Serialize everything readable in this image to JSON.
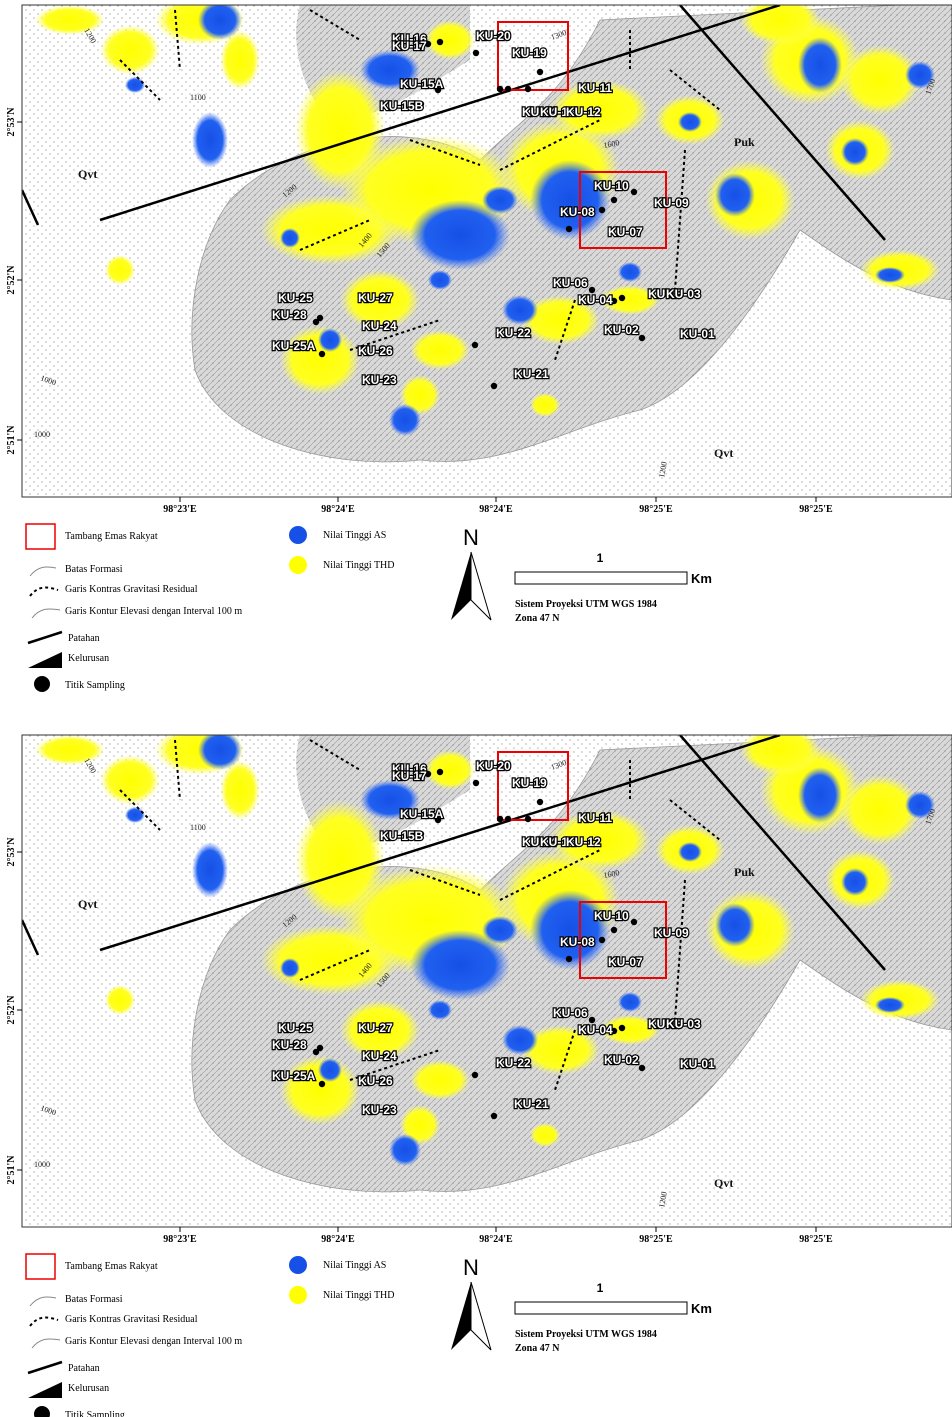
{
  "panels": [
    {
      "sample_labels": [
        "KU-16",
        "KU-17",
        "KU-20",
        "KU-19",
        "KU-15A",
        "KU-15B",
        "KU-11",
        "KU-14",
        "KU-13",
        "KU-12",
        "KU-10",
        "KU-08",
        "KU-09",
        "KU-07",
        "KU-06",
        "KU-04",
        "KU-05",
        "KU-03",
        "KU-25",
        "KU-27",
        "KU-28",
        "KU-24",
        "KU-25A",
        "KU-26",
        "KU-23",
        "KU-22",
        "KU-02",
        "KU-01",
        "KU-21"
      ],
      "formation_labels": [
        "Qvt",
        "Puk",
        "Qvt"
      ],
      "contour_labels": [
        "1200",
        "1100",
        "1300",
        "1600",
        "1200",
        "1400",
        "1500",
        "1000",
        "1000",
        "1200",
        "1700"
      ],
      "lon_ticks": [
        "98°23'E",
        "98°24'E",
        "98°24'E",
        "98°25'E",
        "98°25'E"
      ],
      "lat_ticks": [
        "2°53'N",
        "2°52'N",
        "2°51'N"
      ],
      "legend": [
        "Tambang Emas Rakyat",
        "Batas Formasi",
        "Garis Kontras Gravitasi Residual",
        "Garis Kontur Elevasi dengan Interval 100  m",
        "Patahan",
        "Kelurusan",
        "Titik Sampling",
        "Nilai Tinggi AS",
        "Nilai Tinggi THD"
      ],
      "north": "N",
      "scale": {
        "value": 1,
        "unit": "Km"
      },
      "projection": [
        "Sistem Proyeksi UTM WGS 1984",
        "Zona 47 N"
      ]
    },
    {
      "sample_labels": [
        "KU-16",
        "KU-17",
        "KU-20",
        "KU-19",
        "KU-15A",
        "KU-15B",
        "KU-11",
        "KU-14",
        "KU-13",
        "KU-12",
        "KU-10",
        "KU-08",
        "KU-09",
        "KU-07",
        "KU-06",
        "KU-04",
        "KU-05",
        "KU-03",
        "KU-25",
        "KU-27",
        "KU-28",
        "KU-24",
        "KU-25A",
        "KU-26",
        "KU-23",
        "KU-22",
        "KU-02",
        "KU-01",
        "KU-21"
      ],
      "formation_labels": [
        "Qvt",
        "Puk",
        "Qvt"
      ],
      "contour_labels": [
        "1200",
        "1100",
        "1300",
        "1600",
        "1200",
        "1400",
        "1500",
        "1000",
        "1000",
        "1200",
        "1700"
      ],
      "lon_ticks": [
        "98°23'E",
        "98°24'E",
        "98°24'E",
        "98°25'E",
        "98°25'E"
      ],
      "lat_ticks": [
        "2°53'N",
        "2°52'N",
        "2°51'N"
      ],
      "legend": [
        "Tambang Emas Rakyat",
        "Batas Formasi",
        "Garis Kontras Gravitasi Residual",
        "Garis Kontur Elevasi dengan Interval 100  m",
        "Patahan",
        "Kelurusan",
        "Titik Sampling",
        "Nilai Tinggi AS",
        "Nilai Tinggi THD"
      ],
      "north": "N",
      "scale": {
        "value": 1,
        "unit": "Km"
      },
      "projection": [
        "Sistem Proyeksi UTM WGS 1984",
        "Zona 47 N"
      ]
    }
  ]
}
